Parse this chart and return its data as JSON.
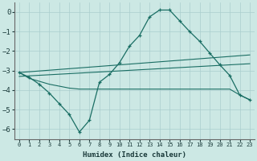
{
  "xlabel": "Humidex (Indice chaleur)",
  "bg_color": "#cce8e4",
  "line_color": "#1a6e64",
  "grid_color": "#aacece",
  "xlim": [
    -0.5,
    23.5
  ],
  "ylim": [
    -6.5,
    0.5
  ],
  "xticks": [
    0,
    1,
    2,
    3,
    4,
    5,
    6,
    7,
    8,
    9,
    10,
    11,
    12,
    13,
    14,
    15,
    16,
    17,
    18,
    19,
    20,
    21,
    22,
    23
  ],
  "yticks": [
    0,
    -1,
    -2,
    -3,
    -4,
    -5,
    -6
  ],
  "line1_x": [
    0,
    1,
    2,
    3,
    4,
    5,
    6,
    7,
    8,
    9,
    10,
    11,
    12,
    13,
    14,
    15,
    16,
    17,
    18,
    19,
    20,
    21,
    22,
    23
  ],
  "line1_y": [
    -3.1,
    -3.35,
    -3.7,
    -4.15,
    -4.7,
    -5.25,
    -6.15,
    -5.55,
    -3.6,
    -3.2,
    -2.6,
    -1.75,
    -1.2,
    -0.25,
    0.1,
    0.1,
    -0.45,
    -1.0,
    -1.5,
    -2.1,
    -2.7,
    -3.25,
    -4.25,
    -4.5
  ],
  "line2_x": [
    0,
    23
  ],
  "line2_y": [
    -3.1,
    -2.2
  ],
  "line3_x": [
    0,
    23
  ],
  "line3_y": [
    -3.3,
    -2.65
  ],
  "line4_x": [
    0,
    1,
    2,
    3,
    4,
    5,
    6,
    7,
    8,
    9,
    10,
    14,
    15,
    16,
    17,
    18,
    19,
    20,
    21,
    22,
    23
  ],
  "line4_y": [
    -3.1,
    -3.4,
    -3.55,
    -3.7,
    -3.8,
    -3.9,
    -3.95,
    -3.95,
    -3.95,
    -3.95,
    -3.95,
    -3.95,
    -3.95,
    -3.95,
    -3.95,
    -3.95,
    -3.95,
    -3.95,
    -3.95,
    -4.25,
    -4.5
  ]
}
